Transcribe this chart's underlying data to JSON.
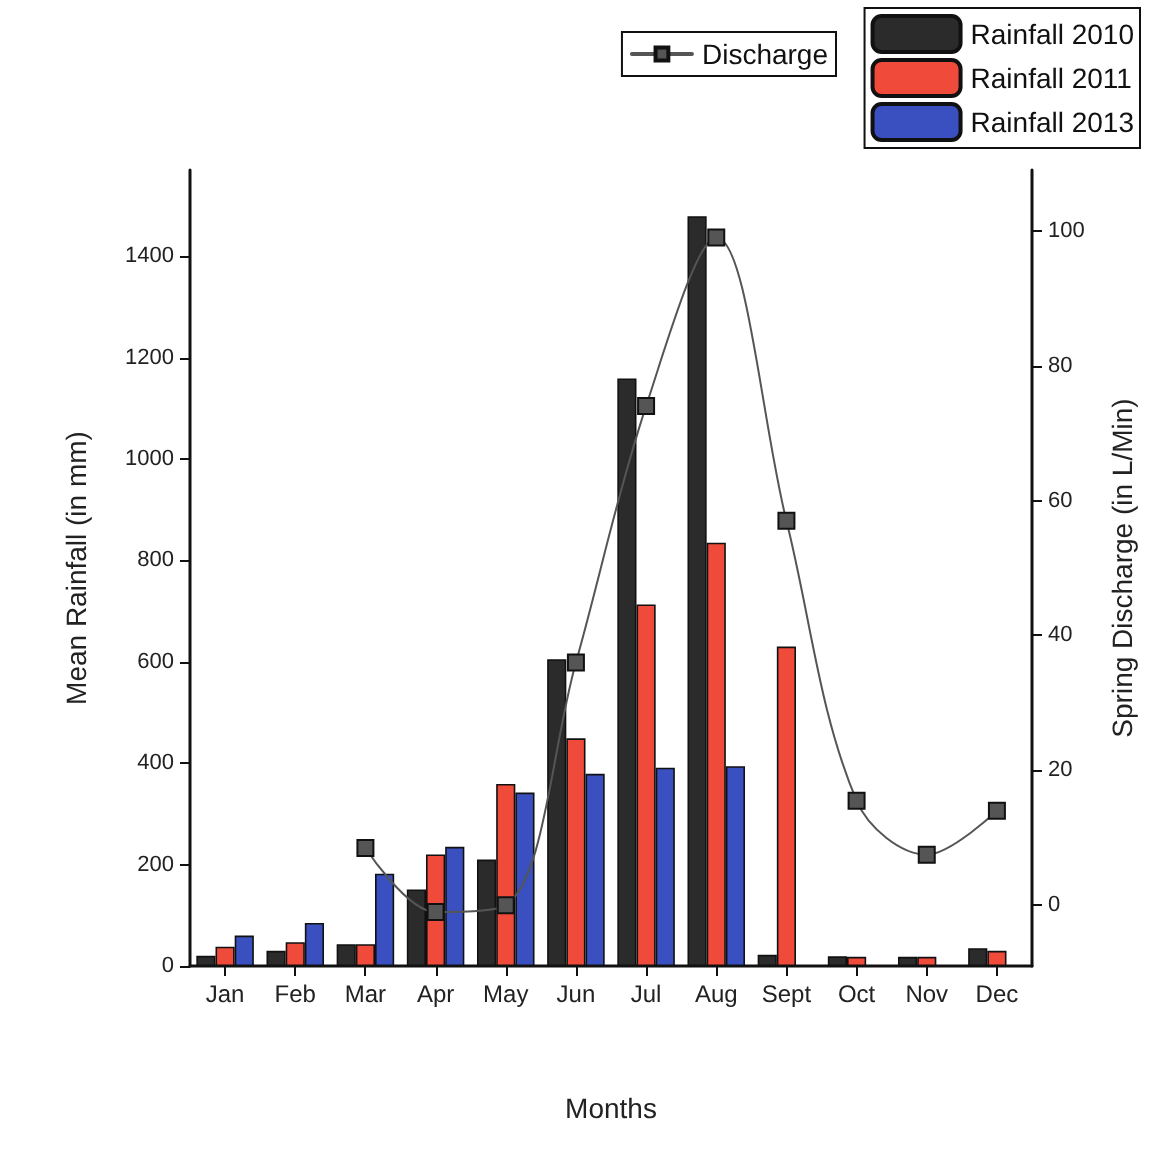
{
  "chart_data": {
    "type": "bar",
    "xlabel": "Months",
    "ylabel": "Mean Rainfall (in mm)",
    "y2label": "Spring Discharge (in L/Min)",
    "categories": [
      "Jan",
      "Feb",
      "Mar",
      "Apr",
      "May",
      "Jun",
      "Jul",
      "Aug",
      "Sept",
      "Oct",
      "Nov",
      "Dec"
    ],
    "series": [
      {
        "name": "Rainfall 2010",
        "color": "#2b2b2b",
        "values": [
          20,
          30,
          43,
          151,
          210,
          605,
          1159,
          1479,
          22,
          19,
          18,
          35
        ]
      },
      {
        "name": "Rainfall 2011",
        "color": "#f04a3a",
        "values": [
          38,
          47,
          43,
          220,
          359,
          449,
          713,
          835,
          630,
          18,
          18,
          30
        ]
      },
      {
        "name": "Rainfall 2013",
        "color": "#3a4fc0",
        "values": [
          60,
          85,
          182,
          235,
          342,
          379,
          391,
          394,
          null,
          null,
          null,
          null
        ]
      },
      {
        "name": "Discharge",
        "type": "line",
        "axis": "y2",
        "color": "#555555",
        "marker": "square",
        "values": [
          null,
          null,
          8.5,
          -1,
          0,
          36,
          74,
          99,
          57,
          15.5,
          7.5,
          14
        ]
      }
    ],
    "ylim": [
      0,
      1570
    ],
    "yticks": [
      0,
      200,
      400,
      600,
      800,
      1000,
      1200,
      1400
    ],
    "y2lim": [
      -9,
      109
    ],
    "y2ticks": [
      0,
      20,
      40,
      60,
      80,
      100
    ],
    "grid": false,
    "legend": "top right"
  }
}
